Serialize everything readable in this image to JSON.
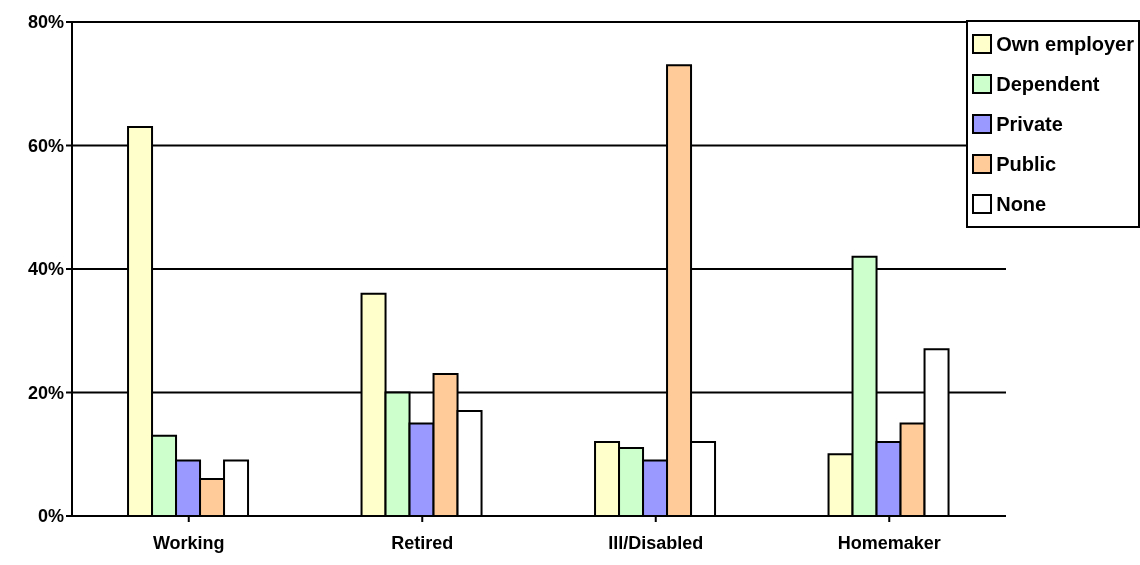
{
  "chart_data": {
    "type": "bar",
    "categories": [
      "Working",
      "Retired",
      "Ill/Disabled",
      "Homemaker"
    ],
    "series": [
      {
        "name": "Own employer",
        "color": "#ffffcc",
        "values": [
          63,
          36,
          12,
          10
        ]
      },
      {
        "name": "Dependent",
        "color": "#ccffcc",
        "values": [
          13,
          20,
          11,
          42
        ]
      },
      {
        "name": "Private",
        "color": "#9999ff",
        "values": [
          9,
          15,
          9,
          12
        ]
      },
      {
        "name": "Public",
        "color": "#ffcc99",
        "values": [
          6,
          23,
          73,
          15
        ]
      },
      {
        "name": "None",
        "color": "#ffffff",
        "values": [
          9,
          17,
          12,
          27
        ]
      }
    ],
    "ylim": [
      0,
      80
    ],
    "yticks": [
      {
        "value": 0,
        "label": "0%"
      },
      {
        "value": 20,
        "label": "20%"
      },
      {
        "value": 40,
        "label": "40%"
      },
      {
        "value": 60,
        "label": "60%"
      },
      {
        "value": 80,
        "label": "80%"
      }
    ],
    "grid": "y",
    "legend": "top right"
  }
}
